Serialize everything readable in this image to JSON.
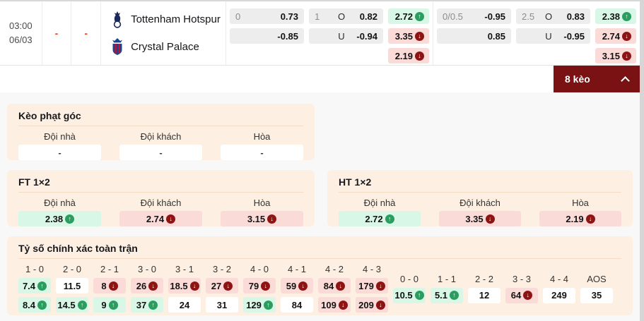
{
  "colors": {
    "up_green": "#2a9d5f",
    "down_red": "#8e1414",
    "bar_maroon": "#7a1214",
    "card_peach": "#fdf0e2",
    "cell_green": "#d9f7e6",
    "cell_pink": "#fbdbd8",
    "dash_red": "#e8402a"
  },
  "match": {
    "time": "03:00",
    "date": "06/03",
    "score_home": "-",
    "score_away": "-",
    "home_team": "Tottenham Hotspur",
    "away_team": "Crystal Palace"
  },
  "top_odds": {
    "groups": [
      {
        "handicap": [
          {
            "line": "0",
            "odds": "0.73"
          },
          {
            "line": "",
            "odds": "-0.85"
          }
        ],
        "over_under": [
          {
            "line": "1",
            "label": "O",
            "odds": "0.82"
          },
          {
            "line": "",
            "label": "U",
            "odds": "-0.94"
          }
        ],
        "one_x_two": [
          {
            "value": "2.72",
            "trend": "up"
          },
          {
            "value": "3.35",
            "trend": "down"
          },
          {
            "value": "2.19",
            "trend": "down"
          }
        ]
      },
      {
        "handicap": [
          {
            "line": "0/0.5",
            "odds": "-0.95"
          },
          {
            "line": "",
            "odds": "0.85"
          }
        ],
        "over_under": [
          {
            "line": "2.5",
            "label": "O",
            "odds": "0.83"
          },
          {
            "line": "",
            "label": "U",
            "odds": "-0.95"
          }
        ],
        "one_x_two": [
          {
            "value": "2.38",
            "trend": "up"
          },
          {
            "value": "2.74",
            "trend": "down"
          },
          {
            "value": "3.15",
            "trend": "down"
          }
        ]
      }
    ]
  },
  "keo_bar": {
    "label": "8 kèo"
  },
  "corner_card": {
    "title": "Kèo phạt góc",
    "headers": [
      "Đội nhà",
      "Đội khách",
      "Hòa"
    ],
    "values": [
      "-",
      "-",
      "-"
    ]
  },
  "ft_card": {
    "title": "FT 1×2",
    "headers": [
      "Đội nhà",
      "Đội khách",
      "Hòa"
    ],
    "odds": [
      {
        "value": "2.38",
        "trend": "up"
      },
      {
        "value": "2.74",
        "trend": "down"
      },
      {
        "value": "3.15",
        "trend": "down"
      }
    ]
  },
  "ht_card": {
    "title": "HT 1×2",
    "headers": [
      "Đội nhà",
      "Đội khách",
      "Hòa"
    ],
    "odds": [
      {
        "value": "2.72",
        "trend": "up"
      },
      {
        "value": "3.35",
        "trend": "down"
      },
      {
        "value": "2.19",
        "trend": "down"
      }
    ]
  },
  "correct_score_card": {
    "title": "Tỷ số chính xác toàn trận",
    "score_columns": [
      {
        "label": "1 - 0",
        "top": {
          "value": "7.4",
          "trend": "up"
        },
        "bottom": {
          "value": "8.4",
          "trend": "up"
        }
      },
      {
        "label": "2 - 0",
        "top": {
          "value": "11.5",
          "trend": "none"
        },
        "bottom": {
          "value": "14.5",
          "trend": "up"
        }
      },
      {
        "label": "2 - 1",
        "top": {
          "value": "8",
          "trend": "down"
        },
        "bottom": {
          "value": "9",
          "trend": "up"
        }
      },
      {
        "label": "3 - 0",
        "top": {
          "value": "26",
          "trend": "down"
        },
        "bottom": {
          "value": "37",
          "trend": "up"
        }
      },
      {
        "label": "3 - 1",
        "top": {
          "value": "18.5",
          "trend": "down"
        },
        "bottom": {
          "value": "24",
          "trend": "none"
        }
      },
      {
        "label": "3 - 2",
        "top": {
          "value": "27",
          "trend": "down"
        },
        "bottom": {
          "value": "31",
          "trend": "none"
        }
      },
      {
        "label": "4 - 0",
        "top": {
          "value": "79",
          "trend": "down"
        },
        "bottom": {
          "value": "129",
          "trend": "up"
        }
      },
      {
        "label": "4 - 1",
        "top": {
          "value": "59",
          "trend": "down"
        },
        "bottom": {
          "value": "84",
          "trend": "none"
        }
      },
      {
        "label": "4 - 2",
        "top": {
          "value": "84",
          "trend": "down"
        },
        "bottom": {
          "value": "109",
          "trend": "down"
        }
      },
      {
        "label": "4 - 3",
        "top": {
          "value": "179",
          "trend": "down"
        },
        "bottom": {
          "value": "209",
          "trend": "down"
        }
      }
    ],
    "draw_columns": [
      {
        "label": "0 - 0",
        "value": "10.5",
        "trend": "up"
      },
      {
        "label": "1 - 1",
        "value": "5.1",
        "trend": "up"
      },
      {
        "label": "2 - 2",
        "value": "12",
        "trend": "none"
      },
      {
        "label": "3 - 3",
        "value": "64",
        "trend": "down"
      },
      {
        "label": "4 - 4",
        "value": "249",
        "trend": "none"
      },
      {
        "label": "AOS",
        "value": "35",
        "trend": "none"
      }
    ]
  }
}
